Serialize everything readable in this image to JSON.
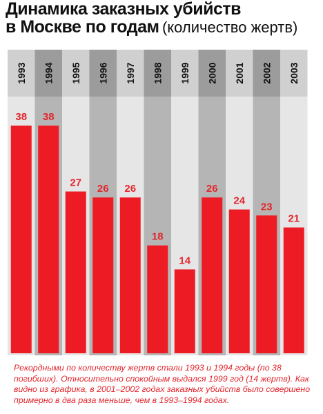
{
  "title": "Динамика заказных убийств",
  "title_line2": "в Москве по годам",
  "subtitle": "(количество жертв)",
  "caption": "Рекордными по количеству жертв стали 1993 и 1994 годы (по 38 погибших). Относительно спокойным выдался 1999 год (14 жертв). Как видно из графика, в 2001–2002 годах заказных убийств было совершено примерно в два раза меньше, чем в 1993–1994 годах.",
  "colors": {
    "bar": "#ed1c24",
    "label": "#e3262d",
    "column_light": "#e6e6e6",
    "column_dark": "#b5b5b5",
    "header_light": "#d0d0d0",
    "header_dark": "#9c9c9c"
  },
  "chart_data": {
    "type": "bar",
    "categories": [
      "1993",
      "1994",
      "1995",
      "1996",
      "1997",
      "1998",
      "1999",
      "2000",
      "2001",
      "2002",
      "2003"
    ],
    "values": [
      38,
      38,
      27,
      26,
      26,
      18,
      14,
      26,
      24,
      23,
      21
    ],
    "title": "Динамика заказных убийств в Москве по годам",
    "subtitle": "(количество жертв)",
    "data_labels": true,
    "grid": false,
    "ylim": [
      0,
      38
    ]
  }
}
